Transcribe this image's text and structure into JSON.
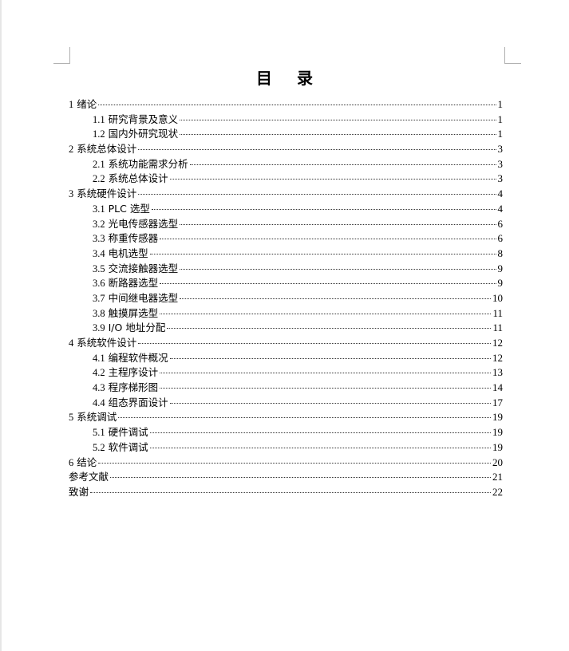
{
  "title": "目 录",
  "entries": [
    {
      "num": "1",
      "text": "绪论",
      "page": "1",
      "level": 1
    },
    {
      "num": "1.1",
      "text": "研究背景及意义",
      "page": "1",
      "level": 2
    },
    {
      "num": "1.2",
      "text": "国内外研究现状",
      "page": "1",
      "level": 2
    },
    {
      "num": "2",
      "text": "系统总体设计",
      "page": "3",
      "level": 1
    },
    {
      "num": "2.1",
      "text": "系统功能需求分析",
      "page": "3",
      "level": 2
    },
    {
      "num": "2.2",
      "text": "系统总体设计",
      "page": "3",
      "level": 2
    },
    {
      "num": "3",
      "text": "系统硬件设计",
      "page": "4",
      "level": 1
    },
    {
      "num": "3.1",
      "text": "PLC 选型",
      "page": "4",
      "level": 2
    },
    {
      "num": "3.2",
      "text": "光电传感器选型",
      "page": "6",
      "level": 2
    },
    {
      "num": "3.3",
      "text": "称重传感器",
      "page": "6",
      "level": 2
    },
    {
      "num": "3.4",
      "text": "电机选型",
      "page": "8",
      "level": 2
    },
    {
      "num": "3.5",
      "text": "交流接触器选型",
      "page": "9",
      "level": 2
    },
    {
      "num": "3.6",
      "text": "断路器选型",
      "page": "9",
      "level": 2
    },
    {
      "num": "3.7",
      "text": "中间继电器选型",
      "page": "10",
      "level": 2
    },
    {
      "num": "3.8",
      "text": "触摸屏选型",
      "page": "11",
      "level": 2
    },
    {
      "num": "3.9",
      "text": "I/O 地址分配",
      "page": "11",
      "level": 2
    },
    {
      "num": "4",
      "text": "系统软件设计",
      "page": "12",
      "level": 1
    },
    {
      "num": "4.1",
      "text": "编程软件概况",
      "page": "12",
      "level": 2
    },
    {
      "num": "4.2",
      "text": "主程序设计",
      "page": "13",
      "level": 2
    },
    {
      "num": "4.3",
      "text": "程序梯形图",
      "page": "14",
      "level": 2
    },
    {
      "num": "4.4",
      "text": "组态界面设计",
      "page": "17",
      "level": 2
    },
    {
      "num": "5",
      "text": "系统调试",
      "page": "19",
      "level": 1
    },
    {
      "num": "5.1",
      "text": "硬件调试",
      "page": "19",
      "level": 2
    },
    {
      "num": "5.2",
      "text": "软件调试",
      "page": "19",
      "level": 2
    },
    {
      "num": "6",
      "text": "结论",
      "page": "20",
      "level": 1
    },
    {
      "num": "",
      "text": "参考文献",
      "page": "21",
      "level": 1
    },
    {
      "num": "",
      "text": "致谢",
      "page": "22",
      "level": 1
    }
  ]
}
